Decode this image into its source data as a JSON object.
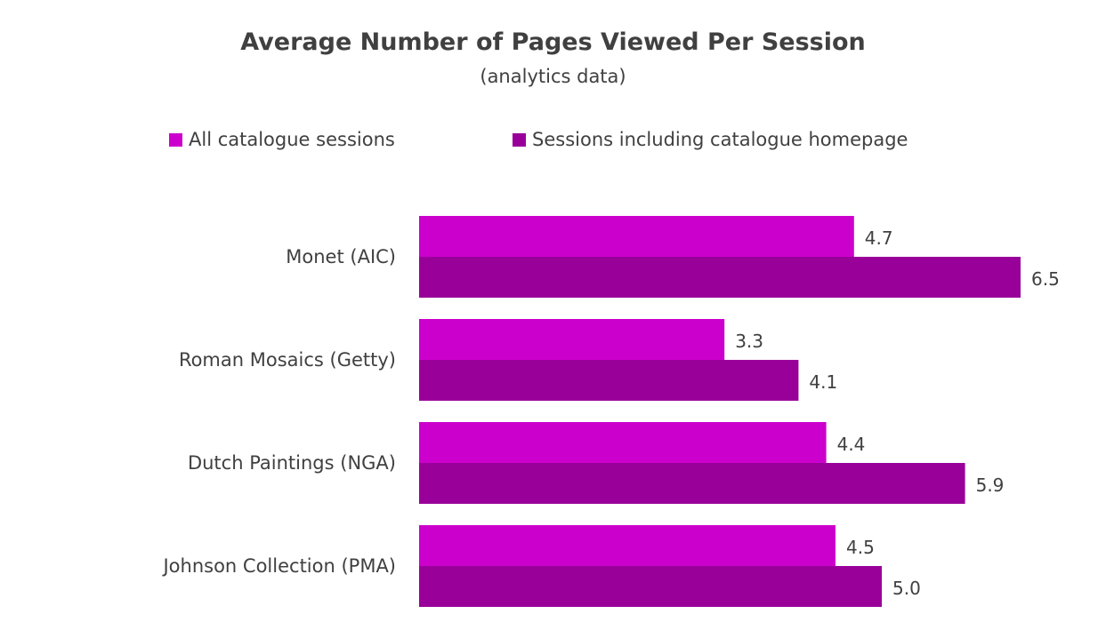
{
  "chart_data": {
    "type": "bar",
    "orientation": "horizontal",
    "title": "Average Number of Pages Viewed Per Session",
    "subtitle": "(analytics data)",
    "categories": [
      "Monet (AIC)",
      "Roman Mosaics (Getty)",
      "Dutch Paintings (NGA)",
      "Johnson Collection (PMA)"
    ],
    "series": [
      {
        "name": "All catalogue sessions",
        "color": "#cc00cc",
        "values": [
          4.7,
          3.3,
          4.4,
          4.5
        ],
        "labels": [
          "4.7",
          "3.3",
          "4.4",
          "4.5"
        ]
      },
      {
        "name": "Sessions including catalogue homepage",
        "color": "#990099",
        "values": [
          6.5,
          4.1,
          5.9,
          5.0
        ],
        "labels": [
          "6.5",
          "4.1",
          "5.9",
          "5.0"
        ]
      }
    ],
    "xlim": [
      0,
      6.5
    ],
    "grid": false,
    "legend_position": "top"
  }
}
